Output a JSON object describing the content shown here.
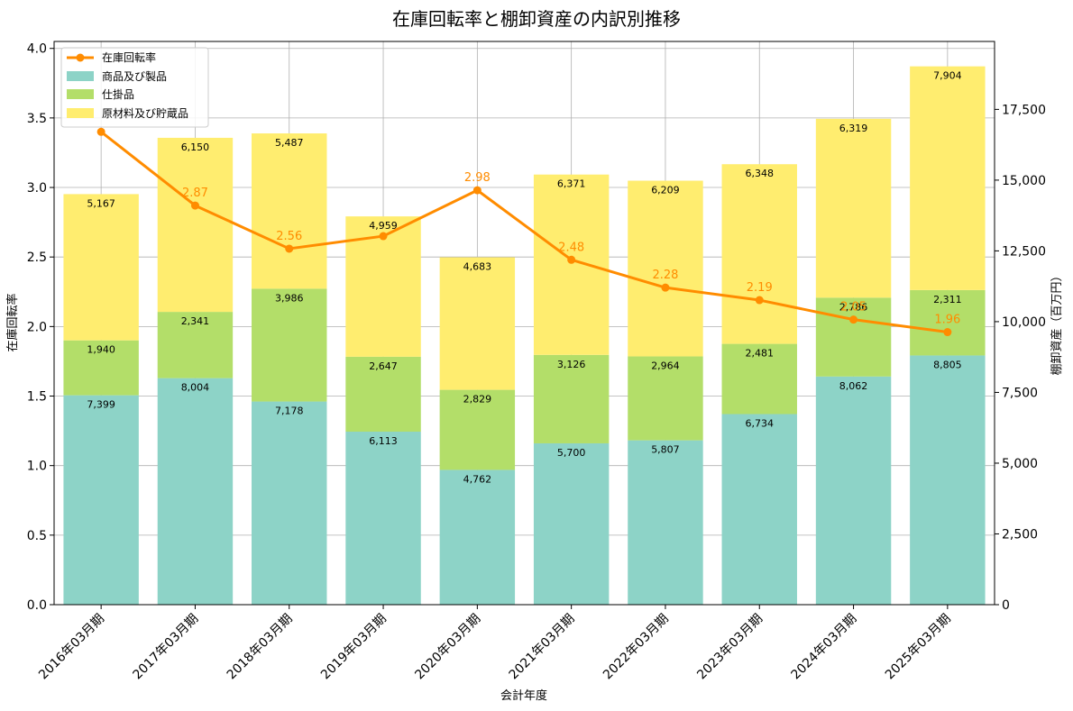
{
  "chart_data": {
    "type": "bar",
    "title": "在庫回転率と棚卸資産の内訳別推移",
    "xlabel": "会計年度",
    "ylabel_left": "在庫回転率",
    "ylabel_right": "棚卸資産（百万円）",
    "categories": [
      "2016年03月期",
      "2017年03月期",
      "2018年03月期",
      "2019年03月期",
      "2020年03月期",
      "2021年03月期",
      "2022年03月期",
      "2023年03月期",
      "2024年03月期",
      "2025年03月期"
    ],
    "ylim_left": [
      0,
      4.05
    ],
    "ylim_right": [
      0,
      19900
    ],
    "left_ticks": [
      "0.0",
      "0.5",
      "1.0",
      "1.5",
      "2.0",
      "2.5",
      "3.0",
      "3.5",
      "4.0"
    ],
    "right_ticks": [
      "0",
      "2,500",
      "5,000",
      "7,500",
      "10,000",
      "12,500",
      "15,000",
      "17,500"
    ],
    "grid": true,
    "legend_position": "top-left",
    "series": [
      {
        "name": "商品及び製品",
        "kind": "bar",
        "axis": "right",
        "color": "#8dd3c7",
        "values": [
          7399,
          8004,
          7178,
          6113,
          4762,
          5700,
          5807,
          6734,
          8062,
          8805
        ],
        "labels": [
          "7,399",
          "8,004",
          "7,178",
          "6,113",
          "4,762",
          "5,700",
          "5,807",
          "6,734",
          "8,062",
          "8,805"
        ]
      },
      {
        "name": "仕掛品",
        "kind": "bar",
        "axis": "right",
        "color": "#b3de69",
        "values": [
          1940,
          2341,
          3986,
          2647,
          2829,
          3126,
          2964,
          2481,
          2786,
          2311
        ],
        "labels": [
          "1,940",
          "2,341",
          "3,986",
          "2,647",
          "2,829",
          "3,126",
          "2,964",
          "2,481",
          "2,786",
          "2,311"
        ]
      },
      {
        "name": "原材料及び貯蔵品",
        "kind": "bar",
        "axis": "right",
        "color": "#ffed6f",
        "values": [
          5167,
          6150,
          5487,
          4959,
          4683,
          6371,
          6209,
          6348,
          6319,
          7904
        ],
        "labels": [
          "5,167",
          "6,150",
          "5,487",
          "4,959",
          "4,683",
          "6,371",
          "6,209",
          "6,348",
          "6,319",
          "7,904"
        ]
      },
      {
        "name": "在庫回転率",
        "kind": "line",
        "axis": "left",
        "color": "#ff8c00",
        "values": [
          3.4,
          2.87,
          2.56,
          2.65,
          2.98,
          2.48,
          2.28,
          2.19,
          2.05,
          1.96
        ],
        "labels": [
          "",
          "2.87",
          "2.56",
          "",
          "2.98",
          "2.48",
          "2.28",
          "2.19",
          "2.05",
          "1.96"
        ]
      }
    ]
  }
}
